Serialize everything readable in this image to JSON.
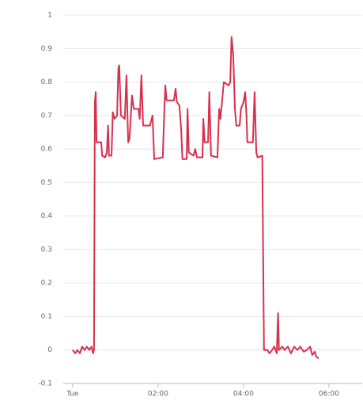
{
  "chart_data": {
    "type": "line",
    "x": [
      0.0,
      0.06,
      0.11,
      0.17,
      0.22,
      0.28,
      0.33,
      0.39,
      0.44,
      0.48,
      0.5,
      0.52,
      0.54,
      0.56,
      0.67,
      0.69,
      0.76,
      0.8,
      0.83,
      0.85,
      0.91,
      0.94,
      0.98,
      1.04,
      1.07,
      1.09,
      1.13,
      1.22,
      1.26,
      1.3,
      1.33,
      1.39,
      1.43,
      1.54,
      1.57,
      1.61,
      1.65,
      1.81,
      1.87,
      1.91,
      2.11,
      2.15,
      2.17,
      2.2,
      2.37,
      2.41,
      2.44,
      2.5,
      2.54,
      2.57,
      2.67,
      2.69,
      2.72,
      2.83,
      2.87,
      2.91,
      3.04,
      3.06,
      3.09,
      3.17,
      3.2,
      3.24,
      3.39,
      3.43,
      3.46,
      3.54,
      3.65,
      3.69,
      3.72,
      3.76,
      3.8,
      3.83,
      3.91,
      3.94,
      4.0,
      4.04,
      4.07,
      4.09,
      4.22,
      4.26,
      4.3,
      4.33,
      4.44,
      4.48,
      4.56,
      4.61,
      4.67,
      4.72,
      4.78,
      4.81,
      4.83,
      4.91,
      4.96,
      5.04,
      5.11,
      5.19,
      5.26,
      5.33,
      5.41,
      5.48,
      5.56,
      5.61,
      5.67,
      5.7,
      5.76
    ],
    "series": [
      {
        "color": "#d7304f",
        "values": [
          0.0,
          -0.01,
          0.0,
          -0.01,
          0.01,
          0.0,
          0.01,
          0.0,
          0.01,
          -0.01,
          0.0,
          0.74,
          0.77,
          0.62,
          0.62,
          0.58,
          0.575,
          0.59,
          0.67,
          0.58,
          0.58,
          0.71,
          0.69,
          0.7,
          0.84,
          0.85,
          0.7,
          0.69,
          0.82,
          0.62,
          0.63,
          0.76,
          0.72,
          0.72,
          0.69,
          0.82,
          0.67,
          0.67,
          0.7,
          0.57,
          0.575,
          0.73,
          0.79,
          0.745,
          0.745,
          0.78,
          0.74,
          0.73,
          0.66,
          0.57,
          0.57,
          0.72,
          0.59,
          0.58,
          0.6,
          0.575,
          0.575,
          0.69,
          0.62,
          0.62,
          0.77,
          0.58,
          0.575,
          0.72,
          0.69,
          0.8,
          0.79,
          0.8,
          0.935,
          0.88,
          0.72,
          0.67,
          0.67,
          0.72,
          0.74,
          0.77,
          0.7,
          0.62,
          0.62,
          0.77,
          0.59,
          0.575,
          0.58,
          0.0,
          0.0,
          -0.01,
          0.0,
          0.01,
          -0.01,
          0.11,
          0.0,
          0.01,
          0.0,
          0.01,
          -0.01,
          0.01,
          0.0,
          0.01,
          -0.005,
          0.0,
          0.01,
          -0.015,
          -0.005,
          -0.02,
          -0.025
        ]
      }
    ],
    "xlim": [
      -0.22,
      6.78
    ],
    "xticks": [
      {
        "value": 0,
        "label": "Tue"
      },
      {
        "value": 2,
        "label": "02:00"
      },
      {
        "value": 4,
        "label": "04:00"
      },
      {
        "value": 6,
        "label": "06:00"
      }
    ],
    "ylim": [
      -0.1,
      1
    ],
    "yticks": [
      -0.1,
      0,
      0.1,
      0.2,
      0.3,
      0.4,
      0.5,
      0.6,
      0.7,
      0.8,
      0.9,
      1
    ],
    "grid": true
  }
}
